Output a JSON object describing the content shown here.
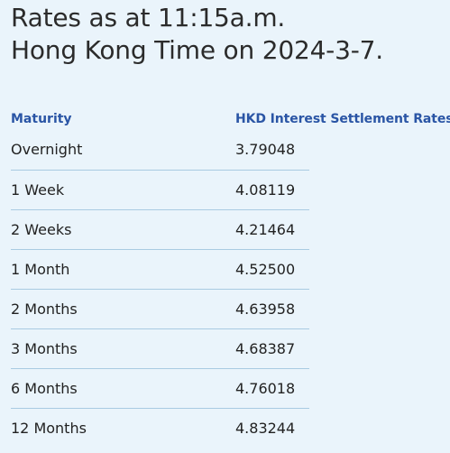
{
  "heading": {
    "line1": "Rates as at 11:15a.m.",
    "line2": "Hong Kong Time on 2024-3-7."
  },
  "table": {
    "headers": {
      "maturity": "Maturity",
      "rate": "HKD Interest Settlement Rates"
    },
    "rows": [
      {
        "maturity": "Overnight",
        "rate": "3.79048"
      },
      {
        "maturity": "1 Week",
        "rate": "4.08119"
      },
      {
        "maturity": "2 Weeks",
        "rate": "4.21464"
      },
      {
        "maturity": "1 Month",
        "rate": "4.52500"
      },
      {
        "maturity": "2 Months",
        "rate": "4.63958"
      },
      {
        "maturity": "3 Months",
        "rate": "4.68387"
      },
      {
        "maturity": "6 Months",
        "rate": "4.76018"
      },
      {
        "maturity": "12 Months",
        "rate": "4.83244"
      }
    ]
  }
}
